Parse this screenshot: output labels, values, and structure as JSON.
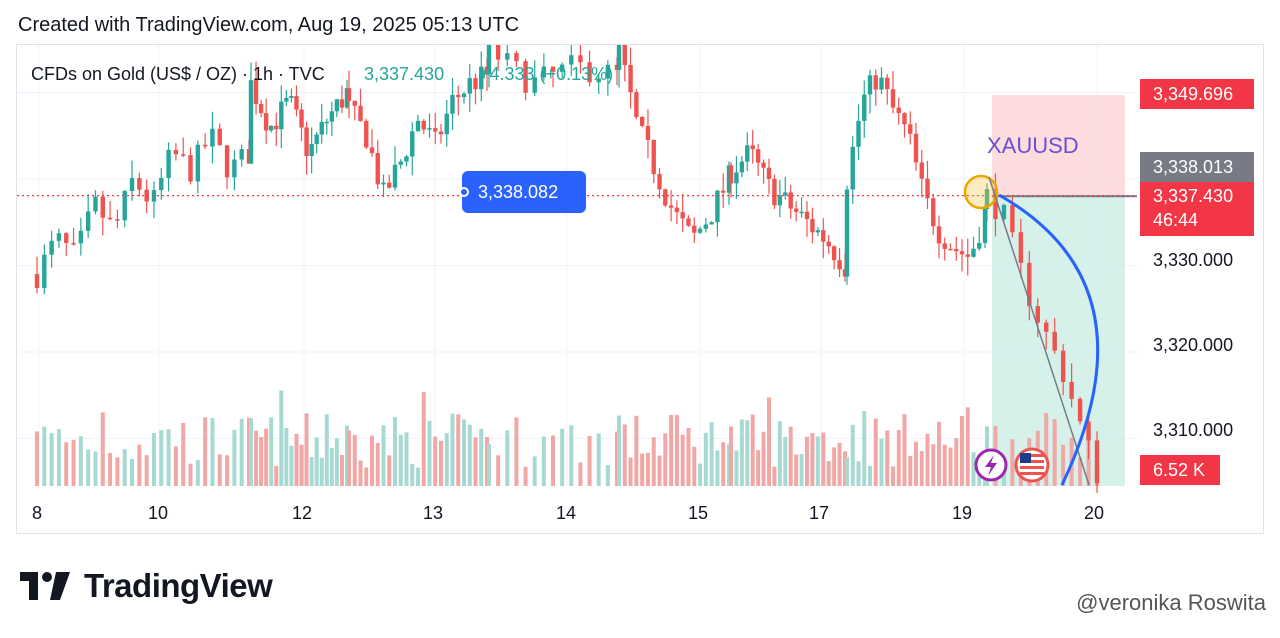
{
  "created_text": "Created with TradingView.com, Aug 19, 2025 05:13 UTC",
  "brand": "TradingView",
  "watermark": "@veronika Roswita",
  "colors": {
    "up": "#26a69a",
    "down": "#ef5350",
    "vol_up": "#a7d9d3",
    "vol_down": "#f1a7a5",
    "price_line": "#f23645",
    "badge_blue": "#2962ff",
    "stop_zone": "#fbd6d9",
    "target_zone": "#cfeee6",
    "curve": "#2962ff"
  },
  "chart_data": {
    "type": "candlestick",
    "symbol": "CFDs on Gold (US$ / OZ) · 1h · TVC",
    "last_quote": "3,337.430",
    "change": "+4.333 (+0.13%)",
    "annotation": "XAUUSD",
    "y_ticks": [
      3330,
      3320,
      3310
    ],
    "y_tick_labels": [
      "3,330.000",
      "3,320.000",
      "3,310.000"
    ],
    "ylim": [
      3304.5,
      3355.5
    ],
    "x_tick_labels": [
      "8",
      "10",
      "12",
      "13",
      "14",
      "15",
      "17",
      "19",
      "20"
    ],
    "crosshair_price": "3,338.082",
    "price_labels": {
      "stop": "3,349.696",
      "entry": "3,338.013",
      "current": "3,337.430",
      "countdown": "46:44",
      "volume": "6.52 K"
    },
    "position": {
      "stop": 3349.696,
      "entry": 3338.013,
      "target": 3304.5
    },
    "segments": [
      {
        "n": 30,
        "x0": 20,
        "x1": 232,
        "levels": [
          3329,
          3333,
          3331,
          3337,
          3334,
          3340,
          3337,
          3343,
          3341,
          3345,
          3341,
          3343
        ]
      },
      {
        "n": 20,
        "x0": 234,
        "x1": 330,
        "levels": [
          3351,
          3346,
          3349,
          3343,
          3347,
          3350
        ]
      },
      {
        "n": 25,
        "x0": 332,
        "x1": 470,
        "levels": [
          3348,
          3345,
          3338,
          3342,
          3347,
          3344,
          3349,
          3351,
          3352
        ]
      },
      {
        "n": 15,
        "x0": 472,
        "x1": 600,
        "levels": [
          3355,
          3351,
          3353,
          3352
        ]
      },
      {
        "n": 20,
        "x0": 602,
        "x1": 712,
        "levels": [
          3355,
          3346,
          3341,
          3336,
          3333,
          3336,
          3340
        ]
      },
      {
        "n": 22,
        "x0": 714,
        "x1": 828,
        "levels": [
          3341,
          3343,
          3339,
          3337,
          3335,
          3333,
          3330
        ]
      },
      {
        "n": 25,
        "x0": 830,
        "x1": 968,
        "levels": [
          3340,
          3349,
          3352,
          3348,
          3345,
          3338,
          3334,
          3332,
          3331,
          3336
        ]
      },
      {
        "n": 14,
        "x0": 970,
        "x1": 1080,
        "levels": [
          3338,
          3336,
          3330,
          3325,
          3321,
          3317,
          3311,
          3306
        ]
      }
    ]
  }
}
